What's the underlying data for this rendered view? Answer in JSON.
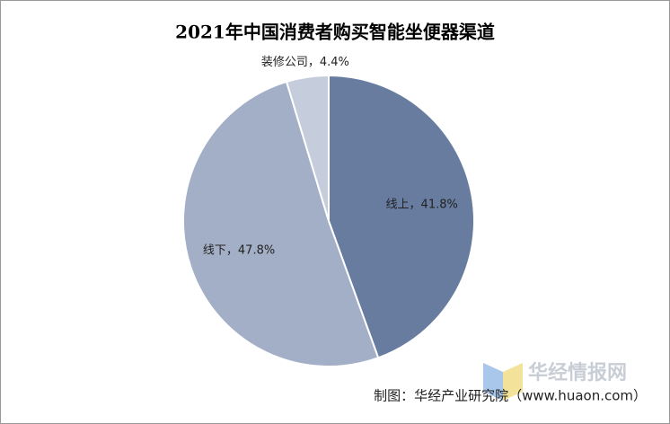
{
  "chart_data": {
    "type": "pie",
    "title": "2021年中国消费者购买智能坐便器渠道",
    "categories": [
      "线上",
      "线下",
      "装修公司"
    ],
    "values": [
      41.8,
      47.8,
      4.4
    ],
    "value_labels": [
      "线上，41.8%",
      "线下，47.8%",
      "装修公司，4.4%"
    ],
    "colors": [
      "#687ca0",
      "#a3afc6",
      "#c5ccdb"
    ],
    "source": "制图：华经产业研究院（www.huaon.com）",
    "watermark": "华经情报网"
  }
}
